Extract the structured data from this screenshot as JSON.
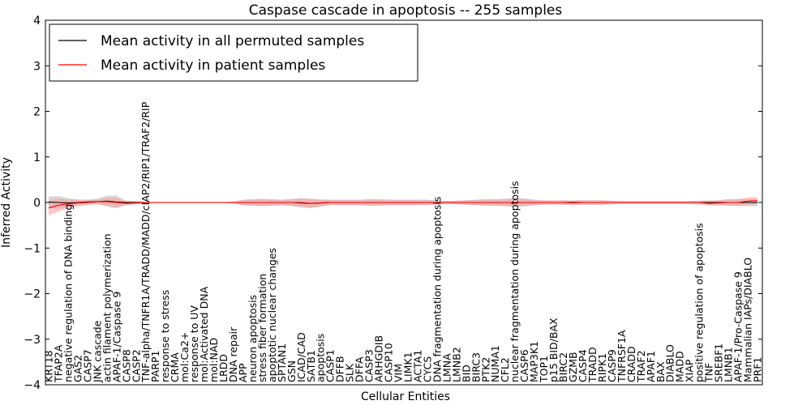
{
  "chart_data": {
    "type": "line",
    "title": "Caspase cascade in apoptosis -- 255 samples",
    "xlabel": "Cellular Entities",
    "ylabel": "Inferred Activity",
    "ylim": [
      -4,
      4
    ],
    "yticks": [
      -4,
      -3,
      -2,
      -1,
      0,
      1,
      2,
      3,
      4
    ],
    "legend_position": "top-left",
    "colors": {
      "permuted": "#000000",
      "patient": "#ff0000",
      "patient_band": "#ff9a9a",
      "permuted_band": "#c8c8c8"
    },
    "categories": [
      "KRT18",
      "TFAP2A",
      "negative regulation of DNA binding",
      "GAS2",
      "CASP7",
      "JNK cascade",
      "actin filament polymerization",
      "APAF-1/Caspase 9",
      "CASP8",
      "CASP2",
      "TNF-alpha/TNFR1A/TRADD/MADD/cIAP2/RIP1/TRAF2/RIP",
      "PARP1",
      "response to stress",
      "CRMA",
      "mol:Ca2+",
      "response to UV",
      "mol:Activated DNA",
      "mol:NAD",
      "LRDD",
      "DNA repair",
      "APP",
      "neuron apoptosis",
      "stress fiber formation",
      "apoptotic nuclear changes",
      "SPTAN1",
      "GSN",
      "ICAD/CAD",
      "SATB1",
      "apoptosis",
      "CASP1",
      "DFFB",
      "SLK",
      "DFFA",
      "CASP3",
      "ARHGDIB",
      "CASP10",
      "VIM",
      "LIMK1",
      "ACTA1",
      "CYCS",
      "DNA fragmentation during apoptosis",
      "LMNA",
      "LMNB2",
      "BID",
      "BIRC3",
      "PTK2",
      "NUMA1",
      "CFL2",
      "nuclear fragmentation during apoptosis",
      "CASP6",
      "MAP3K1",
      "TOP1",
      "p15 BID/BAX",
      "BIRC2",
      "GZMB",
      "CASP4",
      "TRADD",
      "RIPK1",
      "CASP9",
      "TNFRSF1A",
      "CRADD",
      "TRAF2",
      "APAF1",
      "BAX",
      "DIABLO",
      "MADD",
      "XIAP",
      "positive regulation of apoptosis",
      "TNF",
      "SREBF1",
      "LMNB1",
      "APAF-1/Pro-Caspase 9",
      "Mammalian IAPs/DIABLO",
      "PRF1"
    ],
    "series": [
      {
        "name": "Mean activity in all permuted samples",
        "values": [
          0.01,
          0.0,
          -0.01,
          0.0,
          0.01,
          0.02,
          0.03,
          0.01,
          0.0,
          0.0,
          0.0,
          0.0,
          0.0,
          0.0,
          0.0,
          0.0,
          0.0,
          0.0,
          0.0,
          0.0,
          0.0,
          0.0,
          0.0,
          0.0,
          0.0,
          0.0,
          -0.01,
          -0.02,
          -0.01,
          0.0,
          0.0,
          0.0,
          0.0,
          0.0,
          0.0,
          0.0,
          0.0,
          0.0,
          0.0,
          0.0,
          0.0,
          0.0,
          0.0,
          0.0,
          0.0,
          0.0,
          0.0,
          0.0,
          0.0,
          0.0,
          0.0,
          0.0,
          0.0,
          0.0,
          0.0,
          0.0,
          0.0,
          0.0,
          0.0,
          0.0,
          0.0,
          0.0,
          0.0,
          0.0,
          0.0,
          0.0,
          0.0,
          0.0,
          0.0,
          0.0,
          0.0,
          0.0,
          0.0,
          0.0
        ],
        "band": [
          0.12,
          0.14,
          0.1,
          0.06,
          0.05,
          0.06,
          0.12,
          0.14,
          0.04,
          0.03,
          0.02,
          0.01,
          0.01,
          0.01,
          0.01,
          0.01,
          0.01,
          0.01,
          0.01,
          0.02,
          0.06,
          0.07,
          0.08,
          0.07,
          0.06,
          0.08,
          0.1,
          0.1,
          0.07,
          0.06,
          0.06,
          0.06,
          0.06,
          0.07,
          0.07,
          0.06,
          0.06,
          0.06,
          0.06,
          0.06,
          0.04,
          0.03,
          0.04,
          0.05,
          0.06,
          0.07,
          0.07,
          0.08,
          0.1,
          0.09,
          0.06,
          0.04,
          0.04,
          0.05,
          0.05,
          0.05,
          0.05,
          0.05,
          0.04,
          0.03,
          0.03,
          0.03,
          0.03,
          0.03,
          0.03,
          0.03,
          0.03,
          0.04,
          0.05,
          0.05,
          0.07,
          0.08,
          0.08,
          0.08
        ]
      },
      {
        "name": "Mean activity in patient samples",
        "values": [
          -0.12,
          -0.06,
          -0.03,
          -0.01,
          0.0,
          0.02,
          0.02,
          0.0,
          -0.02,
          -0.01,
          0.0,
          0.0,
          0.0,
          0.0,
          0.0,
          0.0,
          0.0,
          0.0,
          0.0,
          0.0,
          0.0,
          0.0,
          0.0,
          0.0,
          0.0,
          0.0,
          0.0,
          -0.02,
          -0.01,
          0.0,
          0.0,
          0.0,
          0.0,
          0.0,
          0.0,
          0.0,
          0.0,
          0.0,
          0.0,
          0.0,
          0.0,
          0.0,
          0.0,
          0.0,
          0.0,
          0.0,
          0.0,
          0.0,
          0.0,
          0.0,
          0.0,
          0.0,
          0.0,
          0.0,
          -0.01,
          0.0,
          0.0,
          0.0,
          0.0,
          0.0,
          0.0,
          0.0,
          0.0,
          0.0,
          0.0,
          0.0,
          0.0,
          0.0,
          -0.02,
          -0.01,
          0.0,
          0.0,
          0.03,
          0.04
        ],
        "band": [
          0.16,
          0.14,
          0.1,
          0.08,
          0.06,
          0.05,
          0.08,
          0.1,
          0.05,
          0.03,
          0.02,
          0.01,
          0.01,
          0.01,
          0.01,
          0.01,
          0.01,
          0.01,
          0.01,
          0.02,
          0.06,
          0.07,
          0.08,
          0.07,
          0.06,
          0.07,
          0.09,
          0.1,
          0.08,
          0.06,
          0.06,
          0.06,
          0.06,
          0.07,
          0.07,
          0.06,
          0.06,
          0.06,
          0.06,
          0.06,
          0.04,
          0.03,
          0.04,
          0.05,
          0.06,
          0.07,
          0.07,
          0.08,
          0.08,
          0.07,
          0.06,
          0.05,
          0.05,
          0.05,
          0.05,
          0.05,
          0.05,
          0.05,
          0.04,
          0.03,
          0.03,
          0.03,
          0.03,
          0.03,
          0.03,
          0.03,
          0.03,
          0.04,
          0.05,
          0.06,
          0.07,
          0.07,
          0.08,
          0.08
        ]
      }
    ]
  }
}
